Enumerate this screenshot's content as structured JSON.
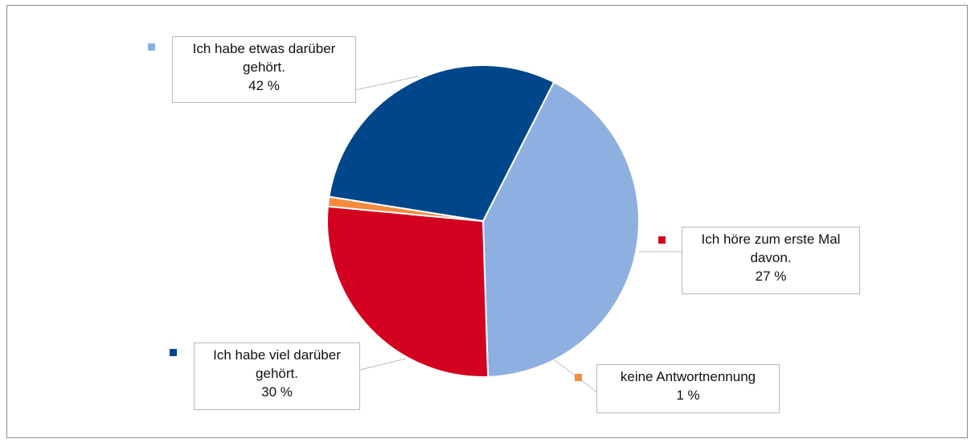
{
  "chart_data": {
    "type": "pie",
    "title": "",
    "slices": [
      {
        "label_lines": [
          "Ich habe etwas darüber",
          "gehört."
        ],
        "value_label": "42 %",
        "value": 42,
        "color": "#8eb0e0"
      },
      {
        "label_lines": [
          "Ich höre zum erste Mal",
          "davon."
        ],
        "value_label": "27 %",
        "value": 27,
        "color": "#d3001f"
      },
      {
        "label_lines": [
          "keine Antwortnennung"
        ],
        "value_label": "1 %",
        "value": 1,
        "color": "#f58a3c"
      },
      {
        "label_lines": [
          "Ich habe viel darüber",
          "gehört."
        ],
        "value_label": "30 %",
        "value": 30,
        "color": "#00468a"
      }
    ]
  }
}
